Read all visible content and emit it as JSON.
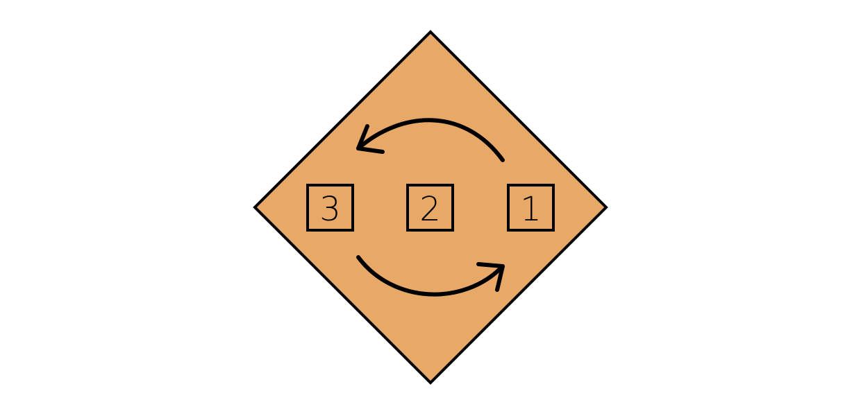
{
  "diagram": {
    "colors": {
      "background": "#ffffff",
      "diamond_fill": "#e8a868",
      "stroke": "#000000"
    },
    "boxes": [
      {
        "label": "3"
      },
      {
        "label": "2"
      },
      {
        "label": "1"
      }
    ],
    "arrows": [
      {
        "from": "1",
        "to": "3",
        "direction": "top-arc-leftward"
      },
      {
        "from": "3",
        "to": "1",
        "direction": "bottom-arc-rightward"
      }
    ]
  }
}
